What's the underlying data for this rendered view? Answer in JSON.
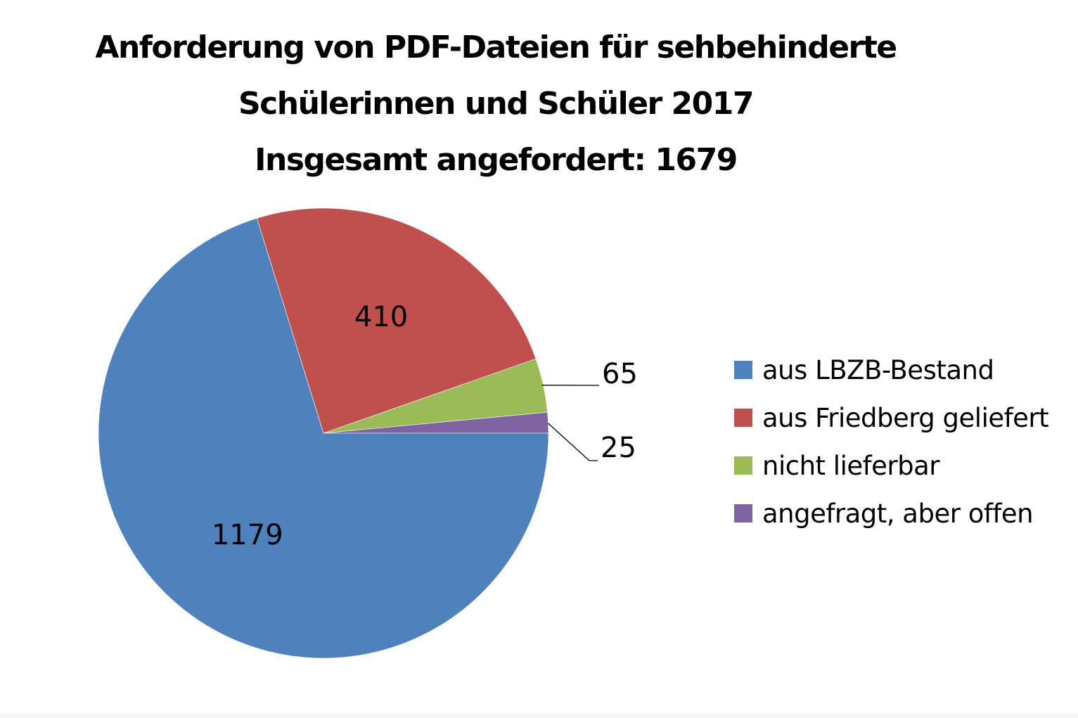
{
  "chart_data": {
    "type": "pie",
    "title": [
      "Anforderung von PDF-Dateien für sehbehinderte",
      "Schülerinnen und Schüler 2017",
      "Insgesamt angefordert: 1679"
    ],
    "categories": [
      "aus LBZB-Bestand",
      "aus Friedberg geliefert",
      "nicht lieferbar",
      "angefragt, aber offen"
    ],
    "values": [
      1179,
      410,
      65,
      25
    ],
    "data_labels": [
      "1179",
      "410",
      "65",
      "25"
    ],
    "colors": [
      "#4F81BD",
      "#C0504D",
      "#9BBB59",
      "#8064A2"
    ],
    "legend_position": "right",
    "start_angle_deg": 0,
    "direction": "counterclockwise-from-last"
  }
}
